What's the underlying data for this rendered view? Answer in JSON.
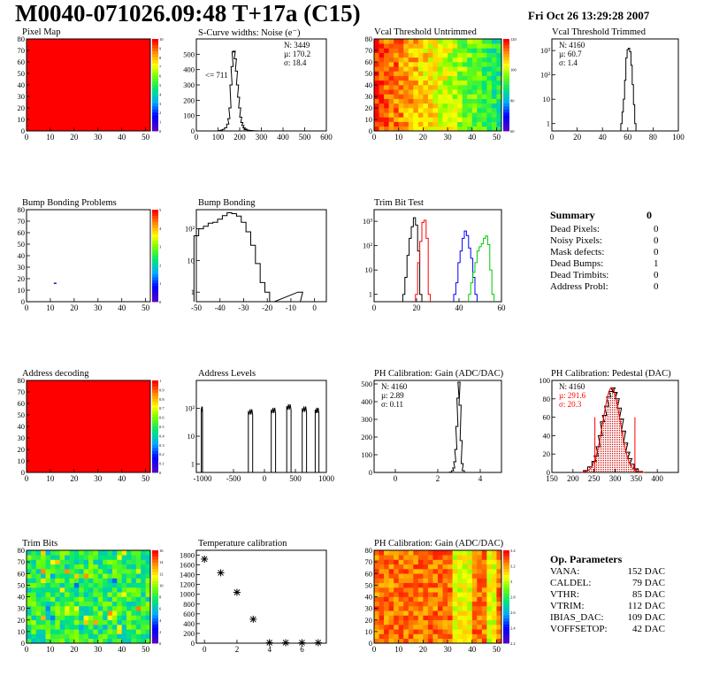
{
  "header": {
    "title": "M0040-071026.09:48 T+17a (C15)",
    "date": "Fri Oct 26 13:29:28 2007"
  },
  "panels": [
    {
      "id": "pixel-map",
      "title": "Pixel Map"
    },
    {
      "id": "scurve-widths",
      "title": "S-Curve widths: Noise (e⁻)",
      "stats": {
        "n": "N: 3449",
        "mu": "µ: 170.2",
        "sigma": "σ: 18.4"
      },
      "annotation": "<= 711"
    },
    {
      "id": "vcal-untrimmed",
      "title": "Vcal Threshold Untrimmed"
    },
    {
      "id": "vcal-trimmed",
      "title": "Vcal Threshold Trimmed",
      "stats": {
        "n": "N: 4160",
        "mu": "µ: 60.7",
        "sigma": "σ:  1.4"
      }
    },
    {
      "id": "bump-problems",
      "title": "Bump Bonding Problems"
    },
    {
      "id": "bump-bonding",
      "title": "Bump Bonding"
    },
    {
      "id": "trim-bit-test",
      "title": "Trim Bit Test"
    },
    {
      "id": "address-decoding",
      "title": "Address decoding"
    },
    {
      "id": "address-levels",
      "title": "Address Levels"
    },
    {
      "id": "ph-gain",
      "title": "PH Calibration: Gain (ADC/DAC)",
      "stats": {
        "n": "N: 4160",
        "mu": "µ: 2.89",
        "sigma": "σ: 0.11"
      }
    },
    {
      "id": "ph-pedestal",
      "title": "PH Calibration: Pedestal (DAC)",
      "stats": {
        "n": "N: 4160",
        "mu": "µ: 291.6",
        "sigma": "σ: 20.3"
      }
    },
    {
      "id": "trim-bits",
      "title": "Trim Bits"
    },
    {
      "id": "temperature-calibration",
      "title": "Temperature calibration"
    },
    {
      "id": "ph-gain-map",
      "title": "PH Calibration: Gain (ADC/DAC)"
    }
  ],
  "summary": {
    "title": "Summary",
    "total": "0",
    "rows": [
      {
        "label": "Dead Pixels:",
        "value": "0"
      },
      {
        "label": "Noisy Pixels:",
        "value": "0"
      },
      {
        "label": "Mask defects:",
        "value": "0"
      },
      {
        "label": "Dead Bumps:",
        "value": "1"
      },
      {
        "label": "Dead Trimbits:",
        "value": "0"
      },
      {
        "label": "Address Probl:",
        "value": "0"
      }
    ]
  },
  "op_parameters": {
    "title": "Op. Parameters",
    "rows": [
      {
        "label": "VANA:",
        "value": "152 DAC"
      },
      {
        "label": "CALDEL:",
        "value": "79 DAC"
      },
      {
        "label": "VTHR:",
        "value": "85 DAC"
      },
      {
        "label": "VTRIM:",
        "value": "112 DAC"
      },
      {
        "label": "IBIAS_DAC:",
        "value": "109 DAC"
      },
      {
        "label": "VOFFSETOP:",
        "value": "42 DAC"
      }
    ]
  },
  "colors": {
    "line_black": "#000000",
    "red": "#ff0000",
    "blue": "#0000ff",
    "green": "#00cc00",
    "pedestal_fill": "#c80000",
    "pixel_map_fill": "#ff0000"
  },
  "chart_data": [
    {
      "name": "pixel-map",
      "type": "heatmap",
      "xlim": [
        0,
        52
      ],
      "ylim": [
        0,
        80
      ],
      "xticks": [
        "0",
        "10",
        "20",
        "30",
        "40",
        "50"
      ],
      "yticks": [
        "0",
        "10",
        "20",
        "30",
        "40",
        "50",
        "60",
        "70",
        "80"
      ],
      "zticks": [
        "0",
        "1",
        "2",
        "3",
        "4",
        "5",
        "6",
        "7",
        "8",
        "9",
        "10"
      ],
      "fill": "uniform red (all pixels = 10)"
    },
    {
      "name": "scurve-widths",
      "type": "line",
      "xlim": [
        0,
        600
      ],
      "ylim": [
        0,
        600
      ],
      "xticks": [
        "0",
        "100",
        "200",
        "300",
        "400",
        "500",
        "600"
      ],
      "yticks": [
        "0",
        "100",
        "200",
        "300",
        "400",
        "500"
      ],
      "x": [
        95,
        105,
        115,
        125,
        135,
        145,
        150,
        155,
        160,
        165,
        170,
        175,
        180,
        185,
        190,
        195,
        200,
        205,
        210,
        215,
        220,
        225,
        230,
        240,
        250,
        260,
        270,
        280,
        290
      ],
      "values": [
        0,
        2,
        5,
        10,
        20,
        45,
        80,
        150,
        300,
        420,
        515,
        520,
        470,
        390,
        300,
        220,
        150,
        90,
        55,
        35,
        20,
        12,
        8,
        5,
        3,
        2,
        1,
        1,
        0
      ]
    },
    {
      "name": "vcal-untrimmed",
      "type": "heatmap",
      "xlim": [
        0,
        52
      ],
      "ylim": [
        0,
        80
      ],
      "xticks": [
        "0",
        "10",
        "20",
        "30",
        "40",
        "50"
      ],
      "yticks": [
        "0",
        "10",
        "20",
        "30",
        "40",
        "50",
        "60",
        "70",
        "80"
      ],
      "zticks": [
        "60",
        "80",
        "100",
        "120"
      ],
      "pattern": "threshold falls from ~120 at col 0 to ~70 at col 52"
    },
    {
      "name": "vcal-trimmed",
      "type": "line",
      "logy": true,
      "xlim": [
        0,
        100
      ],
      "ylim": [
        0.5,
        3000
      ],
      "xticks": [
        "0",
        "20",
        "40",
        "60",
        "80",
        "100"
      ],
      "yticks": [
        "1",
        "10",
        "10²",
        "10³"
      ],
      "x": [
        55,
        56,
        57,
        58,
        59,
        60,
        61,
        62,
        63,
        64,
        65,
        66
      ],
      "values": [
        1,
        3,
        10,
        60,
        500,
        1100,
        1250,
        900,
        250,
        40,
        6,
        1
      ]
    },
    {
      "name": "bump-problems",
      "type": "heatmap",
      "xlim": [
        0,
        52
      ],
      "ylim": [
        0,
        80
      ],
      "xticks": [
        "0",
        "10",
        "20",
        "30",
        "40",
        "50"
      ],
      "yticks": [
        "0",
        "10",
        "20",
        "30",
        "40",
        "50",
        "60",
        "70",
        "80"
      ],
      "zticks": [
        "0",
        "1",
        "2",
        "3",
        "4",
        "5"
      ],
      "points": [
        {
          "x": 12,
          "y": 16
        }
      ]
    },
    {
      "name": "bump-bonding",
      "type": "line",
      "logy": true,
      "xlim": [
        -50,
        5
      ],
      "ylim": [
        0.5,
        400
      ],
      "xticks": [
        "-50",
        "-40",
        "-30",
        "-20",
        "-10",
        "0"
      ],
      "yticks": [
        "1",
        "10",
        "10²"
      ],
      "x": [
        -50,
        -48,
        -46,
        -44,
        -42,
        -40,
        -38,
        -36,
        -34,
        -32,
        -30,
        -28,
        -26,
        -24,
        -22,
        -20,
        -18,
        -6,
        -5
      ],
      "values": [
        60,
        100,
        120,
        150,
        160,
        200,
        260,
        320,
        300,
        250,
        160,
        80,
        30,
        8,
        2,
        1,
        0,
        1,
        0
      ]
    },
    {
      "name": "trim-bit-test",
      "type": "line",
      "logy": true,
      "xlim": [
        0,
        60
      ],
      "ylim": [
        0.5,
        3000
      ],
      "xticks": [
        "0",
        "20",
        "40",
        "60"
      ],
      "yticks": [
        "1",
        "10",
        "10²",
        "10³"
      ],
      "series": [
        {
          "color": "#000000",
          "x": [
            14,
            15,
            16,
            17,
            18,
            19,
            20,
            21,
            22
          ],
          "values": [
            1,
            5,
            40,
            200,
            600,
            1400,
            700,
            60,
            1
          ]
        },
        {
          "color": "#ff0000",
          "x": [
            20,
            21,
            22,
            23,
            24,
            25,
            26
          ],
          "values": [
            1,
            20,
            150,
            900,
            1100,
            200,
            1
          ]
        },
        {
          "color": "#0000ff",
          "x": [
            38,
            39,
            40,
            41,
            42,
            43,
            44,
            45,
            46,
            47,
            48
          ],
          "values": [
            1,
            3,
            20,
            60,
            200,
            400,
            260,
            80,
            30,
            5,
            1
          ]
        },
        {
          "color": "#00cc00",
          "x": [
            45,
            46,
            47,
            48,
            49,
            50,
            51,
            52,
            53,
            54,
            55,
            56
          ],
          "values": [
            1,
            3,
            8,
            20,
            60,
            90,
            120,
            200,
            250,
            110,
            10,
            1
          ]
        }
      ]
    },
    {
      "name": "address-decoding",
      "type": "heatmap",
      "xlim": [
        0,
        52
      ],
      "ylim": [
        0,
        80
      ],
      "xticks": [
        "0",
        "10",
        "20",
        "30",
        "40",
        "50"
      ],
      "yticks": [
        "0",
        "10",
        "20",
        "30",
        "40",
        "50",
        "60",
        "70",
        "80"
      ],
      "zticks": [
        "0",
        "0.1",
        "0.2",
        "0.3",
        "0.4",
        "0.5",
        "0.6",
        "0.7",
        "0.8",
        "0.9",
        "1"
      ],
      "fill": "uniform red (all pixels = 1)"
    },
    {
      "name": "address-levels",
      "type": "line",
      "logy": true,
      "xlim": [
        -1100,
        1000
      ],
      "ylim": [
        0.5,
        1000
      ],
      "xticks": [
        "-1000",
        "-500",
        "0",
        "500",
        "1000"
      ],
      "yticks": [
        "1",
        "10",
        "10²"
      ],
      "peaks": [
        {
          "min": -1020,
          "max": -1000,
          "height": 100
        },
        {
          "min": -260,
          "max": -190,
          "height": 80
        },
        {
          "min": 110,
          "max": 180,
          "height": 90
        },
        {
          "min": 360,
          "max": 430,
          "height": 120
        },
        {
          "min": 610,
          "max": 680,
          "height": 100
        },
        {
          "min": 820,
          "max": 880,
          "height": 90
        }
      ]
    },
    {
      "name": "ph-gain",
      "type": "line",
      "xlim": [
        -1,
        5
      ],
      "ylim": [
        0,
        520
      ],
      "xticks": [
        "0",
        "2",
        "4"
      ],
      "yticks": [
        "0",
        "100",
        "200",
        "300",
        "400",
        "500"
      ],
      "x": [
        2.5,
        2.6,
        2.7,
        2.75,
        2.8,
        2.85,
        2.9,
        2.95,
        3.0,
        3.05,
        3.1,
        3.15,
        3.2,
        3.3
      ],
      "values": [
        0,
        2,
        10,
        25,
        60,
        130,
        260,
        420,
        510,
        380,
        180,
        50,
        10,
        0
      ]
    },
    {
      "name": "ph-pedestal",
      "type": "area",
      "xlim": [
        150,
        450
      ],
      "ylim": [
        0,
        100
      ],
      "xticks": [
        "150",
        "200",
        "250",
        "300",
        "350",
        "400"
      ],
      "yticks": [
        "0",
        "20",
        "40",
        "60",
        "80",
        "100"
      ],
      "fit": {
        "mu": 291.6,
        "sigma": 20.3
      },
      "range_markers": [
        252,
        347
      ],
      "x": [
        220,
        230,
        240,
        250,
        255,
        260,
        265,
        270,
        275,
        280,
        285,
        290,
        295,
        300,
        305,
        310,
        315,
        320,
        325,
        330,
        335,
        340,
        350,
        360,
        370
      ],
      "values": [
        0,
        2,
        6,
        12,
        18,
        28,
        40,
        55,
        62,
        72,
        82,
        88,
        92,
        87,
        80,
        70,
        58,
        45,
        32,
        22,
        15,
        9,
        4,
        1,
        0
      ]
    },
    {
      "name": "trim-bits",
      "type": "heatmap",
      "xlim": [
        0,
        52
      ],
      "ylim": [
        0,
        80
      ],
      "xticks": [
        "0",
        "10",
        "20",
        "30",
        "40",
        "50"
      ],
      "yticks": [
        "0",
        "10",
        "20",
        "30",
        "40",
        "50",
        "60",
        "70",
        "80"
      ],
      "zticks": [
        "0",
        "2",
        "4",
        "6",
        "8",
        "10",
        "12",
        "14",
        "16"
      ],
      "pattern": "mostly ~8 (green) with noise"
    },
    {
      "name": "temperature-calibration",
      "type": "scatter",
      "xlim": [
        -0.5,
        7.5
      ],
      "ylim": [
        0,
        1900
      ],
      "xticks": [
        "0",
        "2",
        "4",
        "6"
      ],
      "yticks": [
        "0",
        "200",
        "400",
        "600",
        "800",
        "1000",
        "1200",
        "1400",
        "1600",
        "1800"
      ],
      "x": [
        0,
        1,
        2,
        3,
        4,
        5,
        6,
        7
      ],
      "values": [
        1720,
        1440,
        1040,
        490,
        10,
        10,
        10,
        10
      ]
    },
    {
      "name": "ph-gain-map",
      "type": "heatmap",
      "xlim": [
        0,
        52
      ],
      "ylim": [
        0,
        80
      ],
      "xticks": [
        "0",
        "10",
        "20",
        "30",
        "40",
        "50"
      ],
      "yticks": [
        "0",
        "10",
        "20",
        "30",
        "40",
        "50",
        "60",
        "70",
        "80"
      ],
      "zticks": [
        "2.2",
        "2.4",
        "2.6",
        "2.8",
        "3",
        "3.2",
        "3.4"
      ],
      "pattern": "mostly 3.0 (orange/red) with yellow stripes"
    }
  ]
}
